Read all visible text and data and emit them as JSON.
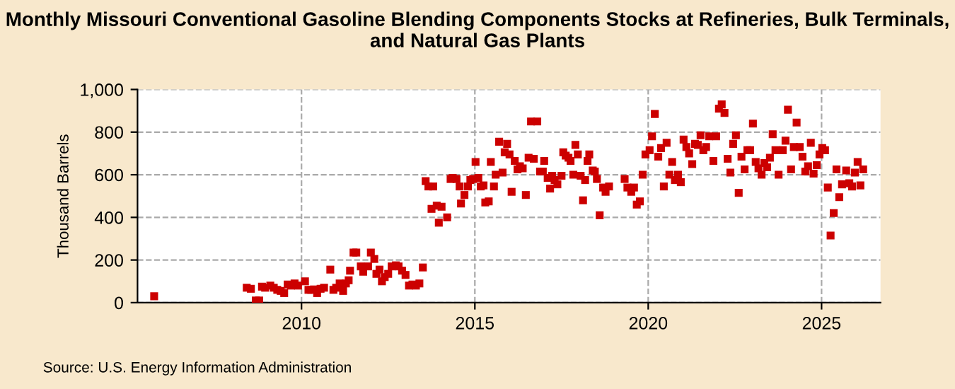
{
  "chart_data": {
    "type": "scatter",
    "title": "Monthly Missouri Conventional Gasoline Blending Components Stocks at Refineries, Bulk Terminals, and Natural Gas Plants",
    "ylabel": "Thousand Barrels",
    "annotations": [
      "Source: U.S. Energy Information Administration"
    ],
    "xlim": [
      2005.27,
      2026.7
    ],
    "xticks": [
      2010,
      2015,
      2020,
      2025
    ],
    "ylim": [
      0,
      1000
    ],
    "yticks": [
      0,
      200,
      400,
      600,
      {
        "value": 800,
        "label": "800"
      },
      {
        "value": 1000,
        "label": "1,000"
      }
    ],
    "grid": true,
    "marker": "square",
    "series": [
      {
        "color": "#cc0000",
        "x": [
          2005.75,
          2008.42,
          2008.54,
          2008.68,
          2008.78,
          2008.86,
          2008.95,
          2009.1,
          2009.2,
          2009.3,
          2009.4,
          2009.5,
          2009.6,
          2009.7,
          2009.8,
          2009.9,
          2010.1,
          2010.2,
          2010.28,
          2010.36,
          2010.45,
          2010.55,
          2010.65,
          2010.83,
          2010.92,
          2011.0,
          2011.1,
          2011.2,
          2011.28,
          2011.36,
          2011.4,
          2011.5,
          2011.58,
          2011.71,
          2011.78,
          2011.92,
          2012.0,
          2012.1,
          2012.16,
          2012.25,
          2012.32,
          2012.4,
          2012.5,
          2012.6,
          2012.72,
          2012.8,
          2012.9,
          2013.0,
          2013.1,
          2013.2,
          2013.3,
          2013.4,
          2013.5,
          2013.58,
          2013.66,
          2013.75,
          2013.8,
          2013.9,
          2013.96,
          2014.04,
          2014.2,
          2014.3,
          2014.36,
          2014.47,
          2014.56,
          2014.6,
          2014.7,
          2014.8,
          2014.87,
          2014.95,
          2015.02,
          2015.1,
          2015.17,
          2015.25,
          2015.3,
          2015.4,
          2015.46,
          2015.55,
          2015.6,
          2015.7,
          2015.8,
          2015.86,
          2015.93,
          2016.0,
          2016.06,
          2016.15,
          2016.23,
          2016.3,
          2016.38,
          2016.47,
          2016.55,
          2016.62,
          2016.7,
          2016.8,
          2016.88,
          2016.96,
          2017.0,
          2017.1,
          2017.17,
          2017.23,
          2017.3,
          2017.38,
          2017.5,
          2017.55,
          2017.62,
          2017.7,
          2017.76,
          2017.84,
          2017.9,
          2017.97,
          2018.05,
          2018.12,
          2018.18,
          2018.25,
          2018.3,
          2018.4,
          2018.46,
          2018.52,
          2018.6,
          2018.7,
          2018.77,
          2018.87,
          2019.32,
          2019.4,
          2019.51,
          2019.59,
          2019.67,
          2019.76,
          2019.84,
          2019.92,
          2020.04,
          2020.11,
          2020.19,
          2020.29,
          2020.37,
          2020.45,
          2020.53,
          2020.61,
          2020.69,
          2020.77,
          2020.86,
          2020.94,
          2021.02,
          2021.1,
          2021.18,
          2021.27,
          2021.35,
          2021.43,
          2021.51,
          2021.59,
          2021.67,
          2021.76,
          2021.88,
          2021.96,
          2022.04,
          2022.12,
          2022.2,
          2022.29,
          2022.37,
          2022.45,
          2022.53,
          2022.61,
          2022.69,
          2022.78,
          2022.86,
          2022.94,
          2023.02,
          2023.1,
          2023.18,
          2023.27,
          2023.35,
          2023.43,
          2023.51,
          2023.59,
          2023.67,
          2023.76,
          2023.88,
          2023.96,
          2024.03,
          2024.12,
          2024.2,
          2024.28,
          2024.37,
          2024.45,
          2024.53,
          2024.61,
          2024.69,
          2024.77,
          2024.86,
          2024.94,
          2025.02,
          2025.1,
          2025.18,
          2025.26,
          2025.35,
          2025.43,
          2025.51,
          2025.59,
          2025.71,
          2025.8,
          2025.88,
          2025.96,
          2026.04,
          2026.12,
          2026.2
        ],
        "values": [
          30,
          70,
          65,
          10,
          10,
          75,
          70,
          80,
          70,
          60,
          55,
          45,
          85,
          80,
          90,
          80,
          100,
          60,
          60,
          62,
          45,
          65,
          70,
          155,
          60,
          70,
          90,
          55,
          90,
          105,
          150,
          235,
          235,
          170,
          145,
          170,
          235,
          205,
          135,
          155,
          100,
          120,
          135,
          170,
          175,
          170,
          150,
          130,
          80,
          85,
          80,
          90,
          165,
          570,
          545,
          440,
          545,
          455,
          375,
          450,
          400,
          580,
          585,
          580,
          545,
          465,
          505,
          545,
          575,
          580,
          660,
          585,
          545,
          550,
          470,
          475,
          660,
          545,
          600,
          755,
          610,
          705,
          745,
          695,
          520,
          665,
          625,
          640,
          630,
          505,
          680,
          850,
          675,
          850,
          615,
          615,
          665,
          585,
          535,
          595,
          575,
          555,
          595,
          705,
          690,
          680,
          665,
          600,
          740,
          695,
          595,
          480,
          575,
          665,
          695,
          620,
          615,
          580,
          410,
          540,
          520,
          545,
          580,
          540,
          520,
          540,
          460,
          475,
          600,
          695,
          715,
          780,
          885,
          685,
          725,
          545,
          750,
          600,
          660,
          575,
          600,
          565,
          765,
          730,
          700,
          650,
          745,
          740,
          785,
          715,
          730,
          780,
          665,
          780,
          910,
          930,
          890,
          675,
          610,
          745,
          785,
          515,
          685,
          625,
          715,
          715,
          840,
          660,
          630,
          600,
          655,
          635,
          680,
          790,
          715,
          600,
          715,
          760,
          905,
          625,
          730,
          845,
          730,
          685,
          615,
          640,
          750,
          605,
          645,
          695,
          725,
          715,
          540,
          315,
          420,
          625,
          495,
          555,
          620,
          560,
          545,
          610,
          660,
          550,
          625
        ]
      }
    ]
  }
}
